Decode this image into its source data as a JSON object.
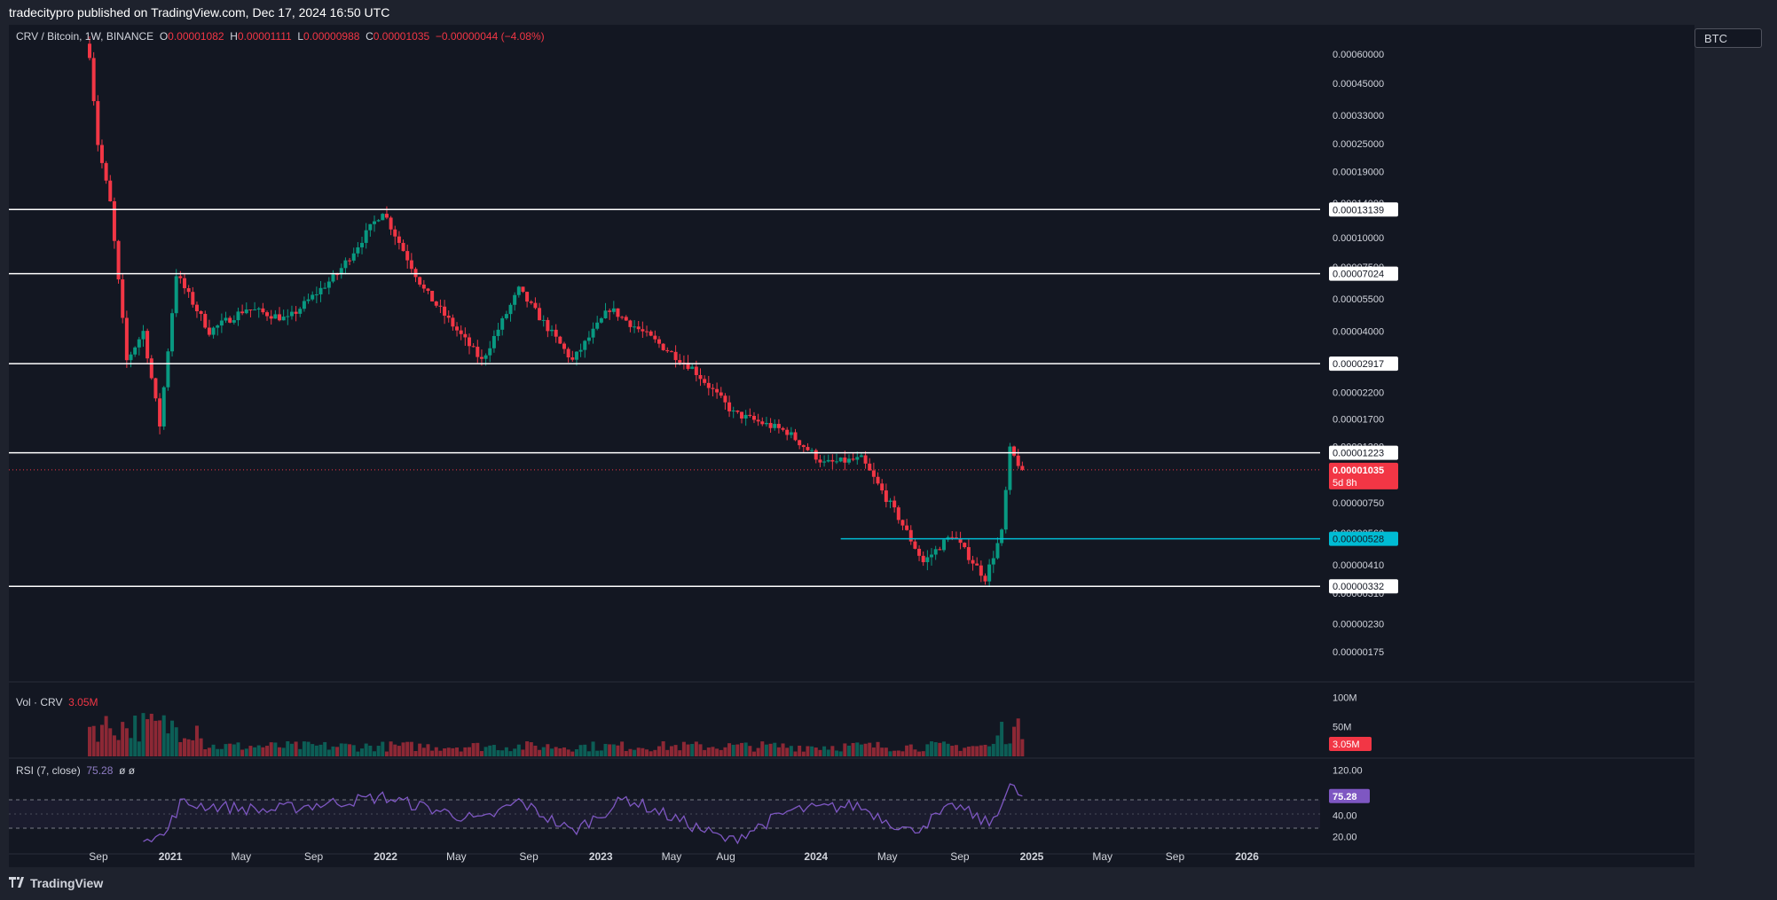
{
  "header": {
    "publisher_line": "tradecitypro published on TradingView.com, Dec 17, 2024 16:50 UTC"
  },
  "footer": {
    "logo_text": "TradingView"
  },
  "currency_button": "BTC",
  "legend": {
    "symbol": "CRV / Bitcoin, 1W, BINANCE",
    "o_label": "O",
    "o_value": "0.00001082",
    "h_label": "H",
    "h_value": "0.00001111",
    "l_label": "L",
    "l_value": "0.00000988",
    "c_label": "C",
    "c_value": "0.00001035",
    "change": "−0.00000044 (−4.08%)"
  },
  "volume_legend": {
    "label": "Vol · CRV",
    "value": "3.05M"
  },
  "rsi_legend": {
    "label": "RSI (7, close)",
    "value": "75.28",
    "extra": "ø  ø"
  },
  "colors": {
    "bull": "#089981",
    "bear": "#f23645",
    "background": "#131722",
    "frame": "#1e222d",
    "level": "#ffffff",
    "cyan_level": "#00bcd4",
    "rsi": "#7e57c2",
    "price_tag": "#f23645"
  },
  "chart_data": [
    {
      "type": "candlestick",
      "title": "CRV / Bitcoin, 1W, BINANCE",
      "y_scale": "log",
      "x_ticks": [
        "Sep",
        "2021",
        "May",
        "Sep",
        "2022",
        "May",
        "Sep",
        "2023",
        "May",
        "Aug",
        "2024",
        "May",
        "Sep",
        "2025",
        "May",
        "Sep",
        "2026"
      ],
      "y_tick_labels": [
        "0.00060000",
        "0.00045000",
        "0.00033000",
        "0.00025000",
        "0.00019000",
        "0.00014000",
        "0.00010000",
        "0.00007500",
        "0.00005500",
        "0.00004000",
        "0.00002900",
        "0.00002200",
        "0.00001700",
        "0.00001300",
        "0.00000990",
        "0.00000750",
        "0.00000560",
        "0.00000410",
        "0.00000310",
        "0.00000230",
        "0.00000175"
      ],
      "horizontal_levels": [
        {
          "value": 0.00013139,
          "label": "0.00013139",
          "color": "white"
        },
        {
          "value": 7.024e-05,
          "label": "0.00007024",
          "color": "white"
        },
        {
          "value": 2.917e-05,
          "label": "0.00002917",
          "color": "white"
        },
        {
          "value": 1.223e-05,
          "label": "0.00001223",
          "color": "white"
        },
        {
          "value": 5.28e-06,
          "label": "0.00000528",
          "color": "cyan"
        },
        {
          "value": 3.32e-06,
          "label": "0.00000332",
          "color": "white"
        }
      ],
      "last_price": {
        "value": 1.035e-05,
        "label": "0.00001035",
        "countdown": "5d 8h"
      },
      "approx_path": [
        {
          "date": "2020-08-17",
          "close": 0.0006
        },
        {
          "date": "2020-08-31",
          "close": 0.00025
        },
        {
          "date": "2020-09-21",
          "close": 0.00014
        },
        {
          "date": "2020-10-19",
          "close": 3e-05
        },
        {
          "date": "2020-11-16",
          "close": 4e-05
        },
        {
          "date": "2020-12-14",
          "close": 1.6e-05
        },
        {
          "date": "2021-01-11",
          "close": 7e-05
        },
        {
          "date": "2021-03-08",
          "close": 4e-05
        },
        {
          "date": "2021-05-10",
          "close": 5e-05
        },
        {
          "date": "2021-07-19",
          "close": 4.5e-05
        },
        {
          "date": "2021-10-11",
          "close": 7e-05
        },
        {
          "date": "2021-12-27",
          "close": 0.00013
        },
        {
          "date": "2022-03-07",
          "close": 6e-05
        },
        {
          "date": "2022-06-13",
          "close": 3e-05
        },
        {
          "date": "2022-08-15",
          "close": 6e-05
        },
        {
          "date": "2022-11-14",
          "close": 3e-05
        },
        {
          "date": "2023-01-16",
          "close": 5e-05
        },
        {
          "date": "2023-06-05",
          "close": 2.8e-05
        },
        {
          "date": "2023-08-14",
          "close": 1.8e-05
        },
        {
          "date": "2023-11-13",
          "close": 1.5e-05
        },
        {
          "date": "2024-01-15",
          "close": 1.1e-05
        },
        {
          "date": "2024-03-18",
          "close": 1.15e-05
        },
        {
          "date": "2024-05-20",
          "close": 6.5e-06
        },
        {
          "date": "2024-07-01",
          "close": 4.2e-06
        },
        {
          "date": "2024-08-19",
          "close": 5.5e-06
        },
        {
          "date": "2024-10-14",
          "close": 3.6e-06
        },
        {
          "date": "2024-11-11",
          "close": 5.6e-06
        },
        {
          "date": "2024-11-25",
          "close": 1.25e-05
        },
        {
          "date": "2024-12-16",
          "close": 1.035e-05
        }
      ]
    },
    {
      "type": "bar",
      "title": "Vol · CRV",
      "y_tick_labels": [
        "100M",
        "50M"
      ],
      "last_value": "3.05M"
    },
    {
      "type": "line",
      "title": "RSI (7, close)",
      "y_tick_labels": [
        "120.00",
        "40.00",
        "20.00"
      ],
      "last_value": "75.28",
      "approx_path": [
        {
          "date": "2020-11-16",
          "value": 20
        },
        {
          "date": "2020-12-21",
          "value": 18
        },
        {
          "date": "2021-01-18",
          "value": 65
        },
        {
          "date": "2021-06-14",
          "value": 55
        },
        {
          "date": "2021-12-27",
          "value": 74
        },
        {
          "date": "2022-06-13",
          "value": 40
        },
        {
          "date": "2022-08-15",
          "value": 68
        },
        {
          "date": "2022-11-14",
          "value": 25
        },
        {
          "date": "2023-02-13",
          "value": 72
        },
        {
          "date": "2023-08-07",
          "value": 12
        },
        {
          "date": "2023-11-20",
          "value": 55
        },
        {
          "date": "2024-03-11",
          "value": 62
        },
        {
          "date": "2024-06-10",
          "value": 25
        },
        {
          "date": "2024-08-26",
          "value": 62
        },
        {
          "date": "2024-10-21",
          "value": 35
        },
        {
          "date": "2024-11-25",
          "value": 88
        },
        {
          "date": "2024-12-16",
          "value": 75.28
        }
      ]
    }
  ]
}
